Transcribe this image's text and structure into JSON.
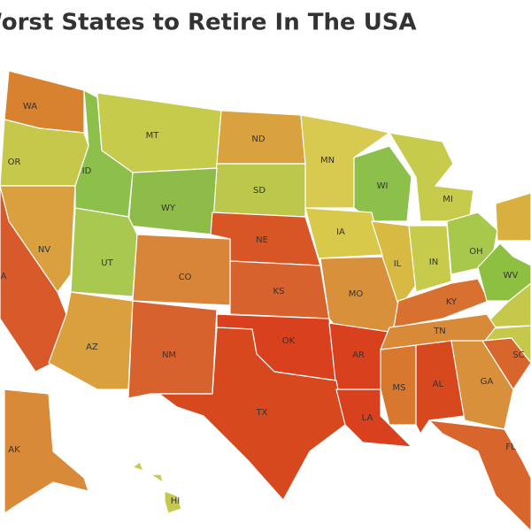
{
  "title": "Worst States to Retire In The USA",
  "states": [
    {
      "abbr": "WA",
      "color": "#d8822f"
    },
    {
      "abbr": "OR",
      "color": "#c6c84b"
    },
    {
      "abbr": "ID",
      "color": "#8dbf4b"
    },
    {
      "abbr": "MT",
      "color": "#c6cb4c"
    },
    {
      "abbr": "ND",
      "color": "#d9a23f"
    },
    {
      "abbr": "MN",
      "color": "#d8c950"
    },
    {
      "abbr": "WI",
      "color": "#8dbf4b"
    },
    {
      "abbr": "MI",
      "color": "#c6cb4c"
    },
    {
      "abbr": "SD",
      "color": "#bcc84b"
    },
    {
      "abbr": "WY",
      "color": "#8dbc49"
    },
    {
      "abbr": "NE",
      "color": "#d85626"
    },
    {
      "abbr": "IA",
      "color": "#d8c94b"
    },
    {
      "abbr": "IL",
      "color": "#d8ba42"
    },
    {
      "abbr": "IN",
      "color": "#c6cb4c"
    },
    {
      "abbr": "OH",
      "color": "#a8c84c"
    },
    {
      "abbr": "NV",
      "color": "#d9a03d"
    },
    {
      "abbr": "UT",
      "color": "#a8c850"
    },
    {
      "abbr": "CO",
      "color": "#d8853a"
    },
    {
      "abbr": "KS",
      "color": "#d8622e"
    },
    {
      "abbr": "MO",
      "color": "#d8903a"
    },
    {
      "abbr": "KY",
      "color": "#d87030"
    },
    {
      "abbr": "WV",
      "color": "#8dc041"
    },
    {
      "abbr": "A",
      "color": "#d85a2a"
    },
    {
      "abbr": "AZ",
      "color": "#d9a03d"
    },
    {
      "abbr": "NM",
      "color": "#d8622e"
    },
    {
      "abbr": "OK",
      "color": "#d8401e"
    },
    {
      "abbr": "AR",
      "color": "#d8401e"
    },
    {
      "abbr": "TN",
      "color": "#d88a38"
    },
    {
      "abbr": "TX",
      "color": "#d8481f"
    },
    {
      "abbr": "LA",
      "color": "#d8401e"
    },
    {
      "abbr": "MS",
      "color": "#d8782f"
    },
    {
      "abbr": "AL",
      "color": "#d8481f"
    },
    {
      "abbr": "GA",
      "color": "#d8903a"
    },
    {
      "abbr": "SC",
      "color": "#d8652c"
    },
    {
      "abbr": "FL",
      "color": "#d8652c"
    },
    {
      "abbr": "AK",
      "color": "#d88a38"
    },
    {
      "abbr": "HI",
      "color": "#c6c84b"
    }
  ]
}
